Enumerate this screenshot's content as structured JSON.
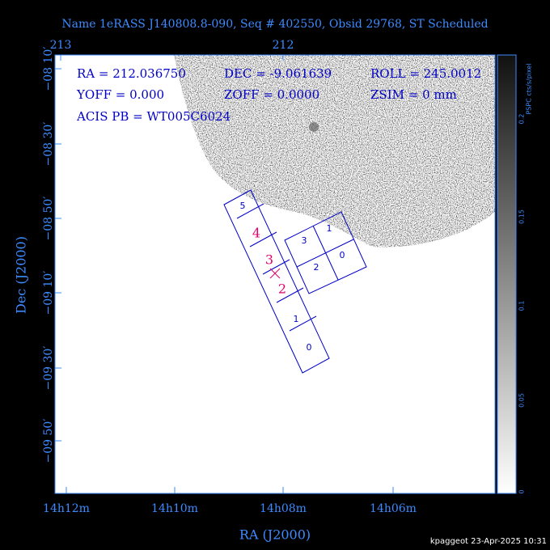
{
  "header": {
    "title": "Name 1eRASS J140808.8-090, Seq # 402550, Obsid 29768, ST Scheduled"
  },
  "axes": {
    "top_ticks": [
      "213",
      "212"
    ],
    "left_ticks": [
      "−08 10′",
      "−08 30′",
      "−08 50′",
      "−09 10′",
      "−09 30′",
      "−09 50′"
    ],
    "bottom_ticks": [
      "14h12m",
      "14h10m",
      "14h08m",
      "14h06m"
    ],
    "x_label": "RA (J2000)",
    "y_label": "Dec (J2000)"
  },
  "info": {
    "lines": [
      [
        "RA = 212.036750",
        "DEC = -9.061639",
        "ROLL = 245.0012"
      ],
      [
        "YOFF =   0.000",
        "ZOFF =  0.0000",
        "ZSIM = 0 mm"
      ],
      [
        "ACIS PB = WT005C6024"
      ]
    ]
  },
  "chips": {
    "acis_s": [
      "5",
      "4",
      "3",
      "2",
      "1",
      "0"
    ],
    "acis_i": [
      "3",
      "1",
      "2",
      "0"
    ]
  },
  "colorbar": {
    "label": "PSPC cts/s/pixel",
    "ticks": [
      "0",
      "0.05",
      "0.1",
      "0.15",
      "0.2"
    ]
  },
  "footer": "kpaggeot 23-Apr-2025 10:31"
}
